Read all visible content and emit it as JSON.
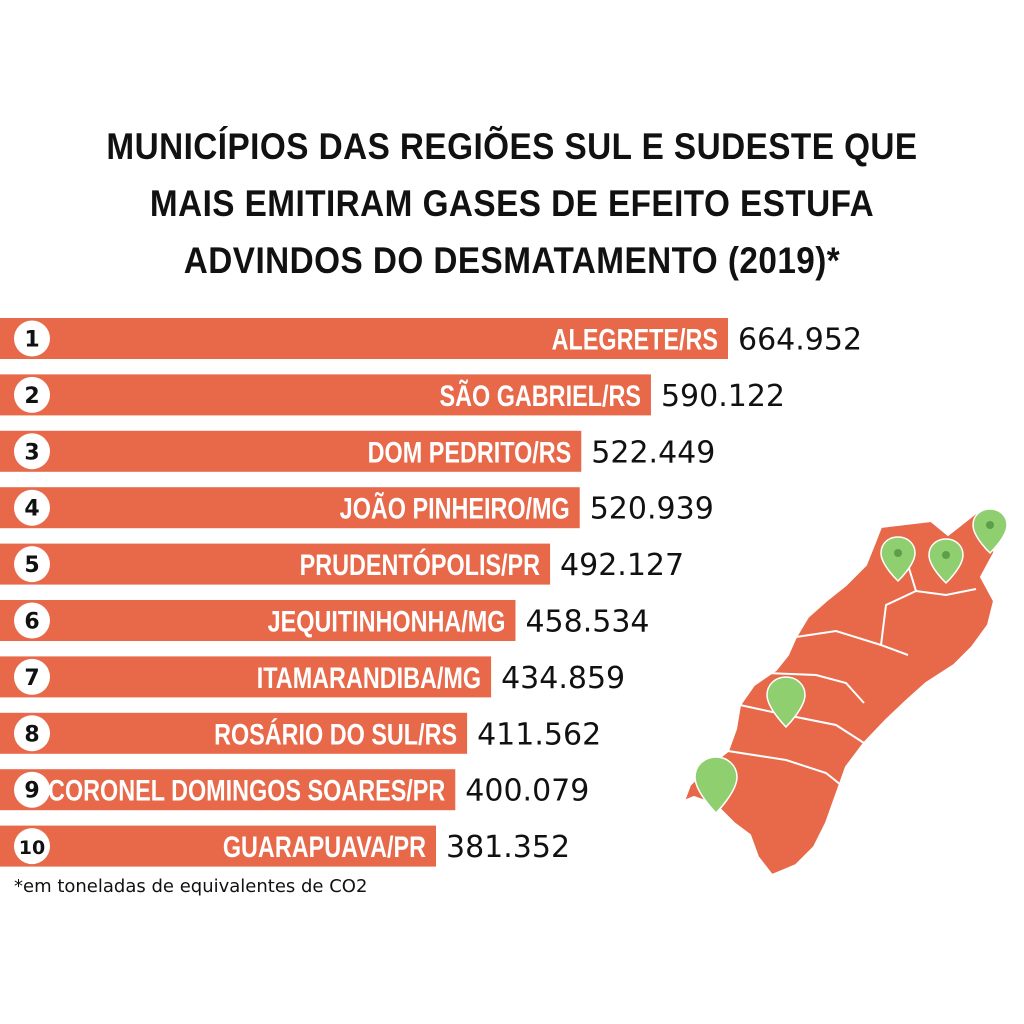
{
  "title": "MUNICÍPIOS DAS REGIÕES SUL E SUDESTE QUE MAIS EMITIRAM GASES DE EFEITO ESTUFA ADVINDOS DO DESMATAMENTO (2019)*",
  "footnote": "*em toneladas de equivalentes de CO2",
  "colors": {
    "bar": "#e8684a",
    "pin": "#8fcf6f",
    "text": "#111111",
    "background": "#ffffff"
  },
  "chart_data": {
    "type": "bar",
    "orientation": "horizontal",
    "title": "MUNICÍPIOS DAS REGIÕES SUL E SUDESTE QUE MAIS EMITIRAM GASES DE EFEITO ESTUFA ADVINDOS DO DESMATAMENTO (2019)*",
    "ranks": [
      "1",
      "2",
      "3",
      "4",
      "5",
      "6",
      "7",
      "8",
      "9",
      "10"
    ],
    "categories": [
      "ALEGRETE/RS",
      "SÃO GABRIEL/RS",
      "DOM PEDRITO/RS",
      "JOÃO PINHEIRO/MG",
      "PRUDENTÓPOLIS/PR",
      "JEQUITINHONHA/MG",
      "ITAMARANDIBA/MG",
      "ROSÁRIO DO SUL/RS",
      "CORONEL DOMINGOS SOARES/PR",
      "GUARAPUAVA/PR"
    ],
    "values": [
      664952,
      590122,
      522449,
      520939,
      492127,
      458534,
      434859,
      411562,
      400079,
      381352
    ],
    "value_labels": [
      "664.952",
      "590.122",
      "522.449",
      "520.939",
      "492.127",
      "458.534",
      "434.859",
      "411.562",
      "400.079",
      "381.352"
    ],
    "unit": "*em toneladas de equivalentes de CO2"
  },
  "map": {
    "description_icon": "brazil-south-southeast-map-icon",
    "pin_icon": "map-pin-icon",
    "pin_count": 5
  }
}
